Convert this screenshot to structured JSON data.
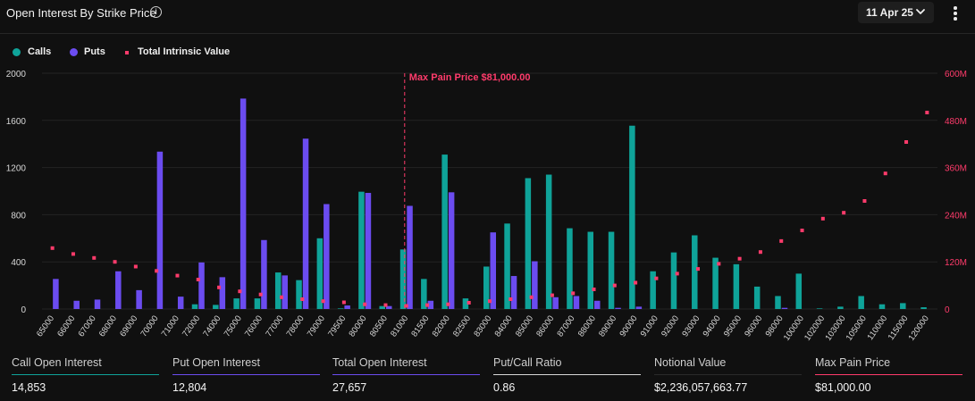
{
  "header": {
    "title": "Open Interest By Strike Price",
    "info_icon": "info-icon",
    "date_selected": "11 Apr 25",
    "date_icon": "chevron-down-icon",
    "more_icon": "more-vertical-icon"
  },
  "legend": {
    "calls": "Calls",
    "puts": "Puts",
    "intrinsic": "Total Intrinsic Value"
  },
  "colors": {
    "calls": "#0fa399",
    "puts": "#6b4cf0",
    "intrinsic": "#ff3b6b",
    "max_pain": "#ff3b6b"
  },
  "chart_data": {
    "type": "bar",
    "title": "Open Interest By Strike Price",
    "categories": [
      "65000",
      "66000",
      "67000",
      "68000",
      "69000",
      "70000",
      "71000",
      "72000",
      "74000",
      "75000",
      "76000",
      "77000",
      "78000",
      "79000",
      "79500",
      "80000",
      "80500",
      "81000",
      "81500",
      "82000",
      "82500",
      "83000",
      "84000",
      "85000",
      "86000",
      "87000",
      "88000",
      "89000",
      "90000",
      "91000",
      "92000",
      "93000",
      "94000",
      "95000",
      "96000",
      "98000",
      "100000",
      "102000",
      "103000",
      "105000",
      "110000",
      "115000",
      "120000"
    ],
    "series": [
      {
        "name": "Calls",
        "axis": "left",
        "values": [
          0,
          0,
          0,
          0,
          0,
          0,
          0,
          40,
          35,
          90,
          90,
          310,
          245,
          600,
          5,
          995,
          25,
          505,
          255,
          1310,
          90,
          360,
          725,
          1110,
          1140,
          685,
          655,
          655,
          1555,
          320,
          480,
          625,
          435,
          380,
          190,
          110,
          300,
          5,
          20,
          110,
          40,
          50,
          15
        ]
      },
      {
        "name": "Puts",
        "axis": "left",
        "values": [
          255,
          70,
          80,
          320,
          160,
          1335,
          105,
          395,
          270,
          1785,
          585,
          285,
          1445,
          890,
          30,
          985,
          25,
          875,
          70,
          990,
          0,
          650,
          280,
          405,
          100,
          110,
          70,
          10,
          20,
          0,
          0,
          0,
          0,
          0,
          0,
          10,
          0,
          0,
          0,
          0,
          0,
          0,
          0
        ]
      },
      {
        "name": "Total Intrinsic Value",
        "axis": "right",
        "type": "scatter",
        "values": [
          155,
          140,
          130,
          120,
          108,
          97,
          85,
          75,
          55,
          45,
          37,
          30,
          25,
          20,
          17,
          12,
          10,
          8,
          10,
          12,
          16,
          20,
          25,
          30,
          35,
          40,
          50,
          60,
          67,
          78,
          90,
          102,
          115,
          128,
          145,
          173,
          200,
          230,
          245,
          275,
          345,
          425,
          500
        ]
      }
    ],
    "yaxis_left": {
      "min": 0,
      "max": 2000,
      "ticks": [
        "0",
        "400",
        "800",
        "1200",
        "1600",
        "2000"
      ]
    },
    "yaxis_right": {
      "min": 0,
      "max": 600,
      "unit": "M",
      "ticks": [
        "0",
        "120M",
        "240M",
        "360M",
        "480M",
        "600M"
      ]
    },
    "max_pain": {
      "strike": "81000",
      "label": "Max Pain Price $81,000.00"
    },
    "grid": true,
    "legend_position": "top-left"
  },
  "stats": [
    {
      "label": "Call Open Interest",
      "value": "14,853",
      "color": "#0fa399"
    },
    {
      "label": "Put Open Interest",
      "value": "12,804",
      "color": "#6b4cf0"
    },
    {
      "label": "Total Open Interest",
      "value": "27,657",
      "color": "#6b4cf0"
    },
    {
      "label": "Put/Call Ratio",
      "value": "0.86",
      "color": "#d8d8d8"
    },
    {
      "label": "Notional Value",
      "value": "$2,236,057,663.77",
      "color": "#2a2a2a"
    },
    {
      "label": "Max Pain Price",
      "value": "$81,000.00",
      "color": "#ff3b6b"
    }
  ]
}
